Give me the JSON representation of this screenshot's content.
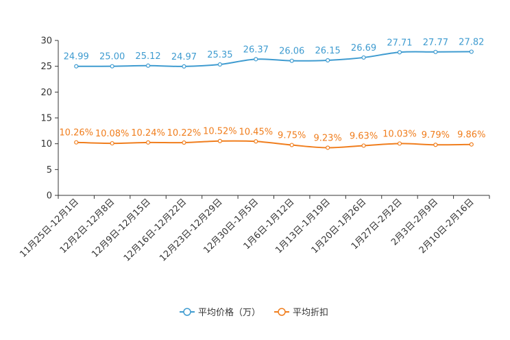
{
  "chart_data": {
    "type": "line",
    "title": "",
    "xlabel": "",
    "ylabel": "",
    "ylim": [
      0,
      30
    ],
    "yticks": [
      0,
      5,
      10,
      15,
      20,
      25,
      30
    ],
    "grid": false,
    "legend_position": "bottom-center",
    "categories": [
      "11月25日-12月1日",
      "12月2日-12月8日",
      "12月9日-12月15日",
      "12月16日-12月22日",
      "12月23日-12月29日",
      "12月30日-1月5日",
      "1月6日-1月12日",
      "1月13日-1月19日",
      "1月20日-1月26日",
      "1月27日-2月2日",
      "2月3日-2月9日",
      "2月10日-2月16日"
    ],
    "series": [
      {
        "name": "平均价格（万）",
        "color": "#3e9bd0",
        "values": [
          24.99,
          25.0,
          25.12,
          24.97,
          25.35,
          26.37,
          26.06,
          26.15,
          26.69,
          27.71,
          27.77,
          27.82
        ],
        "labels": [
          "24.99",
          "25.00",
          "25.12",
          "24.97",
          "25.35",
          "26.37",
          "26.06",
          "26.15",
          "26.69",
          "27.71",
          "27.77",
          "27.82"
        ]
      },
      {
        "name": "平均折扣",
        "color": "#f07d1c",
        "values": [
          10.26,
          10.08,
          10.24,
          10.22,
          10.52,
          10.45,
          9.75,
          9.23,
          9.63,
          10.03,
          9.79,
          9.86
        ],
        "labels": [
          "10.26%",
          "10.08%",
          "10.24%",
          "10.22%",
          "10.52%",
          "10.45%",
          "9.75%",
          "9.23%",
          "9.63%",
          "10.03%",
          "9.79%",
          "9.86%"
        ]
      }
    ]
  }
}
